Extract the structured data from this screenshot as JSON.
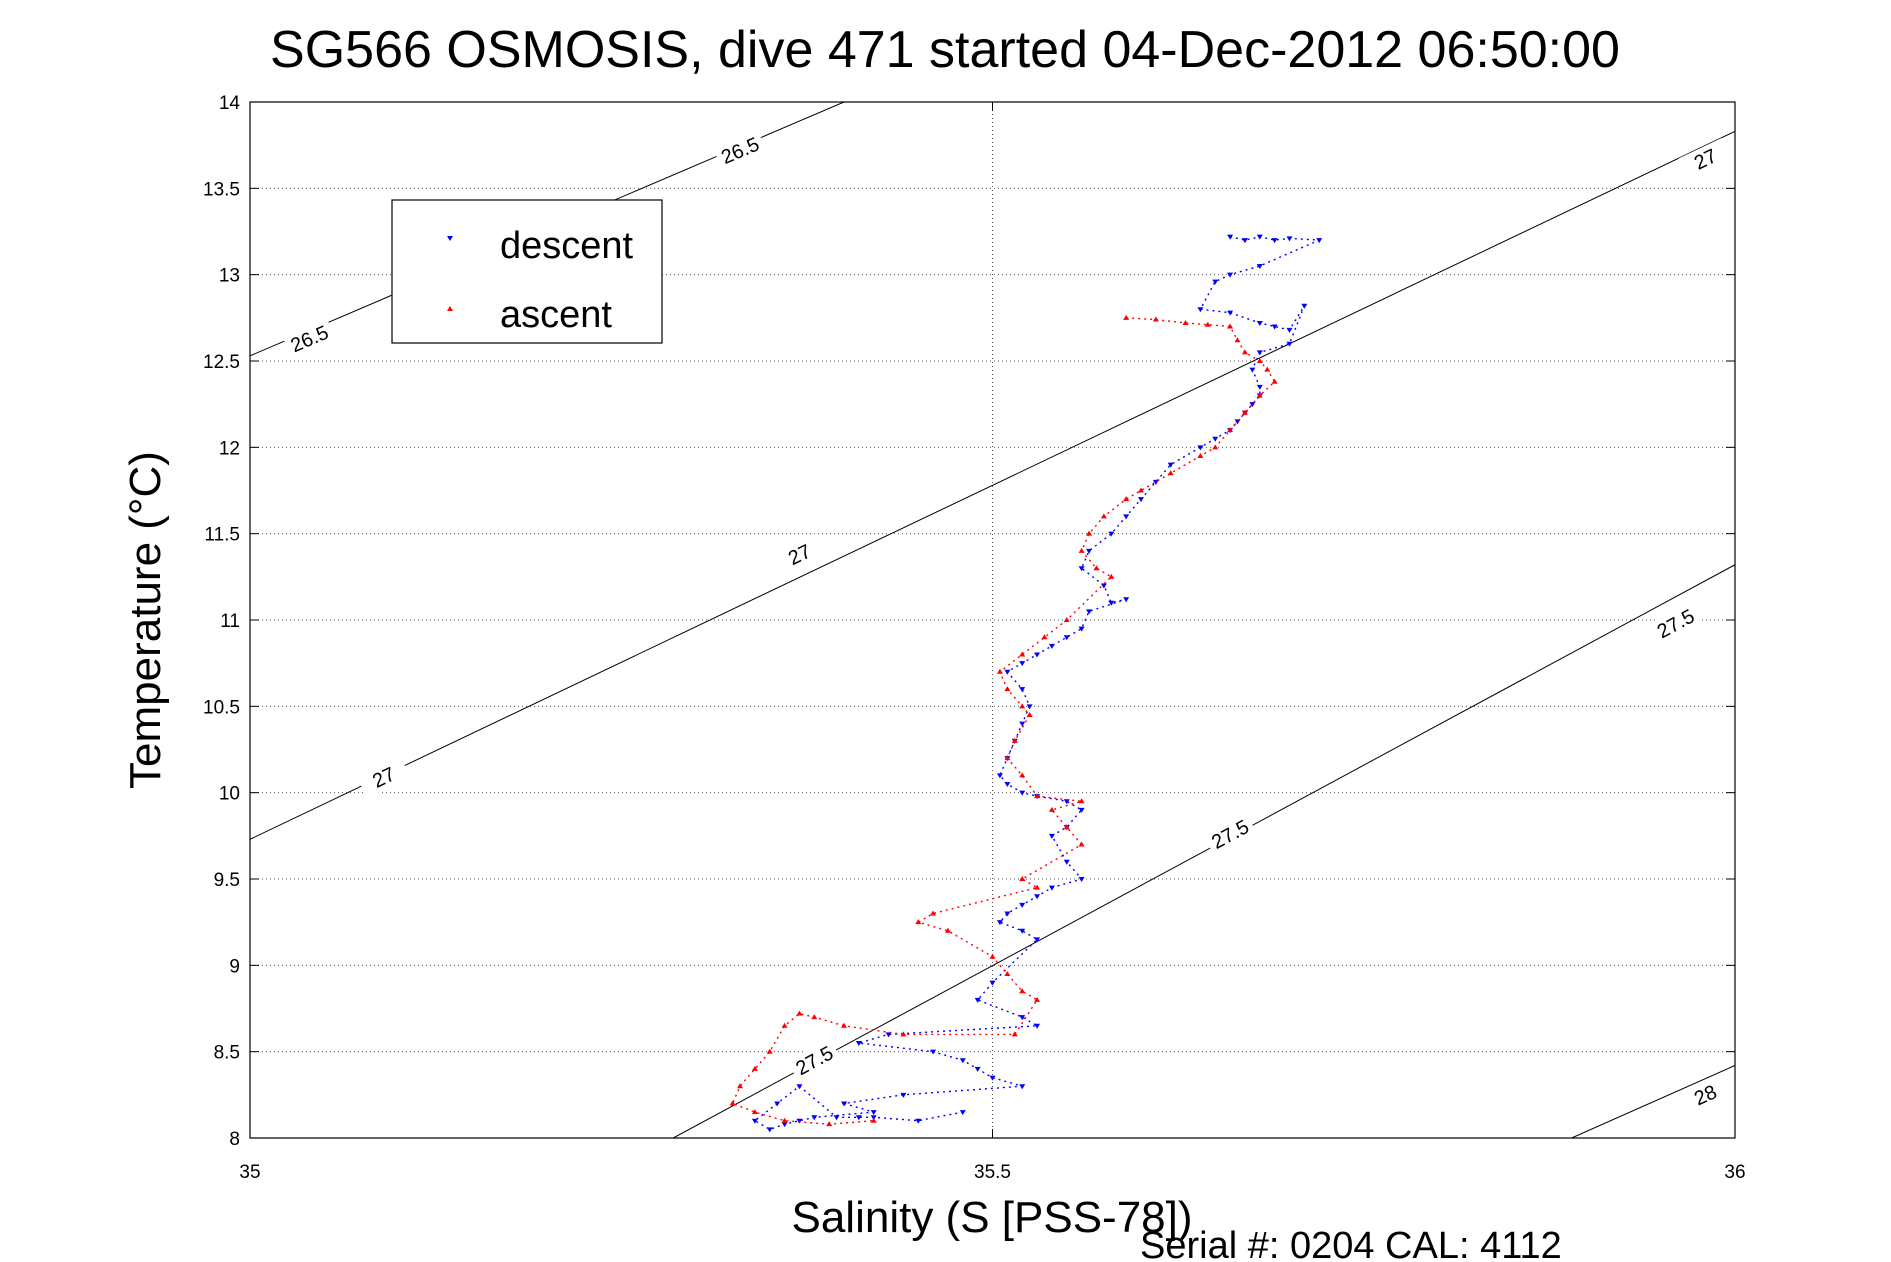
{
  "chart_data": {
    "type": "scatter",
    "title": "SG566 OSMOSIS, dive 471 started 04-Dec-2012 06:50:00",
    "xlabel": "Salinity (S [PSS-78])",
    "ylabel": "Temperature (°C)",
    "xlim": [
      35,
      36
    ],
    "ylim": [
      8,
      14
    ],
    "x_ticks": [
      "35",
      "35.5",
      "36"
    ],
    "x_tick_values": [
      35,
      35.5,
      36
    ],
    "y_ticks": [
      "8",
      "8.5",
      "9",
      "9.5",
      "10",
      "10.5",
      "11",
      "11.5",
      "12",
      "12.5",
      "13",
      "13.5",
      "14"
    ],
    "y_tick_values": [
      8,
      8.5,
      9,
      9.5,
      10,
      10.5,
      11,
      11.5,
      12,
      12.5,
      13,
      13.5,
      14
    ],
    "grid": true,
    "grid_style": "dotted",
    "legend_position": "top-left",
    "series": [
      {
        "name": "descent",
        "color": "#0000ff",
        "marker": "triangle-down",
        "x": [
          35.66,
          35.67,
          35.68,
          35.69,
          35.7,
          35.72,
          35.68,
          35.66,
          35.65,
          35.64,
          35.66,
          35.68,
          35.69,
          35.7,
          35.71,
          35.7,
          35.68,
          35.675,
          35.68,
          35.68,
          35.675,
          35.67,
          35.665,
          35.66,
          35.65,
          35.64,
          35.62,
          35.61,
          35.6,
          35.59,
          35.58,
          35.565,
          35.56,
          35.575,
          35.58,
          35.59,
          35.565,
          35.56,
          35.55,
          35.54,
          35.53,
          35.52,
          35.51,
          35.52,
          35.525,
          35.52,
          35.515,
          35.51,
          35.505,
          35.51,
          35.52,
          35.53,
          35.55,
          35.56,
          35.55,
          35.54,
          35.55,
          35.56,
          35.54,
          35.53,
          35.52,
          35.51,
          35.505,
          35.52,
          35.53,
          35.5,
          35.49,
          35.52,
          35.53,
          35.43,
          35.41,
          35.46,
          35.48,
          35.49,
          35.5,
          35.52,
          35.44,
          35.4,
          35.42,
          35.38,
          35.37,
          35.36,
          35.35,
          35.34,
          35.355,
          35.37,
          35.395,
          35.41,
          35.42,
          35.45,
          35.48
        ],
        "y": [
          13.22,
          13.2,
          13.22,
          13.2,
          13.21,
          13.2,
          13.05,
          13.0,
          12.96,
          12.8,
          12.78,
          12.72,
          12.7,
          12.68,
          12.82,
          12.6,
          12.55,
          12.45,
          12.35,
          12.3,
          12.25,
          12.2,
          12.15,
          12.1,
          12.05,
          12.0,
          11.9,
          11.8,
          11.7,
          11.6,
          11.5,
          11.4,
          11.3,
          11.2,
          11.1,
          11.12,
          11.05,
          10.95,
          10.9,
          10.85,
          10.8,
          10.75,
          10.7,
          10.6,
          10.5,
          10.4,
          10.3,
          10.2,
          10.1,
          10.05,
          10.0,
          9.98,
          9.95,
          9.9,
          9.8,
          9.75,
          9.6,
          9.5,
          9.45,
          9.4,
          9.35,
          9.3,
          9.25,
          9.2,
          9.15,
          8.9,
          8.8,
          8.7,
          8.65,
          8.6,
          8.55,
          8.5,
          8.45,
          8.4,
          8.35,
          8.3,
          8.25,
          8.2,
          8.15,
          8.12,
          8.1,
          8.08,
          8.05,
          8.1,
          8.2,
          8.3,
          8.12,
          8.12,
          8.12,
          8.1,
          8.15
        ]
      },
      {
        "name": "ascent",
        "color": "#ff0000",
        "marker": "triangle-up",
        "x": [
          35.59,
          35.61,
          35.63,
          35.645,
          35.66,
          35.665,
          35.67,
          35.68,
          35.685,
          35.69,
          35.68,
          35.67,
          35.66,
          35.65,
          35.64,
          35.62,
          35.6,
          35.59,
          35.575,
          35.565,
          35.56,
          35.57,
          35.58,
          35.55,
          35.535,
          35.52,
          35.505,
          35.51,
          35.52,
          35.525,
          35.515,
          35.51,
          35.52,
          35.53,
          35.56,
          35.54,
          35.55,
          35.56,
          35.52,
          35.53,
          35.46,
          35.45,
          35.47,
          35.5,
          35.51,
          35.52,
          35.53,
          35.515,
          35.44,
          35.4,
          35.38,
          35.37,
          35.36,
          35.35,
          35.34,
          35.33,
          35.325,
          35.34,
          35.36,
          35.39,
          35.42
        ],
        "y": [
          12.75,
          12.74,
          12.72,
          12.71,
          12.7,
          12.62,
          12.55,
          12.5,
          12.45,
          12.38,
          12.3,
          12.2,
          12.1,
          12.0,
          11.95,
          11.85,
          11.75,
          11.7,
          11.6,
          11.5,
          11.4,
          11.3,
          11.25,
          11.0,
          10.9,
          10.8,
          10.7,
          10.6,
          10.5,
          10.45,
          10.3,
          10.2,
          10.1,
          9.98,
          9.95,
          9.9,
          9.8,
          9.7,
          9.5,
          9.45,
          9.3,
          9.25,
          9.2,
          9.05,
          8.95,
          8.85,
          8.8,
          8.6,
          8.6,
          8.65,
          8.7,
          8.72,
          8.65,
          8.5,
          8.4,
          8.3,
          8.2,
          8.15,
          8.1,
          8.08,
          8.1
        ]
      }
    ],
    "contours": [
      {
        "label": "26.5",
        "line": [
          [
            35,
            12.53
          ],
          [
            35.4,
            14
          ]
        ],
        "label_positions": [
          [
            35.04,
            12.63
          ],
          [
            35.33,
            13.72
          ]
        ]
      },
      {
        "label": "27",
        "line": [
          [
            35,
            9.73
          ],
          [
            36,
            13.83
          ]
        ],
        "label_positions": [
          [
            35.09,
            10.09
          ],
          [
            35.37,
            11.38
          ],
          [
            35.98,
            13.67
          ]
        ]
      },
      {
        "label": "27.5",
        "line": [
          [
            35.285,
            8
          ],
          [
            36,
            11.32
          ]
        ],
        "label_positions": [
          [
            35.38,
            8.45
          ],
          [
            35.66,
            9.76
          ],
          [
            35.96,
            10.98
          ]
        ]
      },
      {
        "label": "28",
        "line": [
          [
            35.89,
            8
          ],
          [
            36,
            8.42
          ]
        ],
        "label_positions": [
          [
            35.98,
            8.25
          ]
        ]
      }
    ]
  },
  "footer": {
    "text": "Serial #: 0204  CAL: 4112"
  }
}
